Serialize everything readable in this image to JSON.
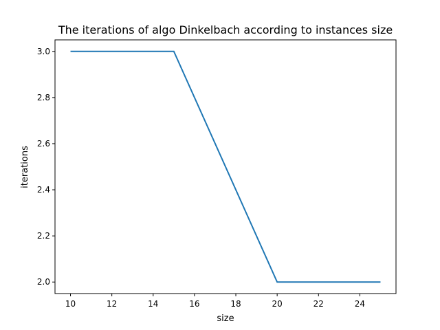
{
  "chart_data": {
    "type": "line",
    "title": "The iterations of algo Dinkelbach according to instances size",
    "xlabel": "size",
    "ylabel": "iterations",
    "x": [
      10,
      15,
      20,
      25
    ],
    "series": [
      {
        "values": [
          3.0,
          3.0,
          2.0,
          2.0
        ],
        "color": "#1f77b4"
      }
    ],
    "xlim": [
      9.25,
      25.75
    ],
    "ylim": [
      1.95,
      3.05
    ],
    "xticks": [
      10,
      12,
      14,
      16,
      18,
      20,
      22,
      24
    ],
    "yticks": [
      2.0,
      2.2,
      2.4,
      2.6,
      2.8,
      3.0
    ],
    "xtick_labels": [
      "10",
      "12",
      "14",
      "16",
      "18",
      "20",
      "22",
      "24"
    ],
    "ytick_labels": [
      "2.0",
      "2.2",
      "2.4",
      "2.6",
      "2.8",
      "3.0"
    ],
    "grid": false,
    "legend": "none"
  }
}
